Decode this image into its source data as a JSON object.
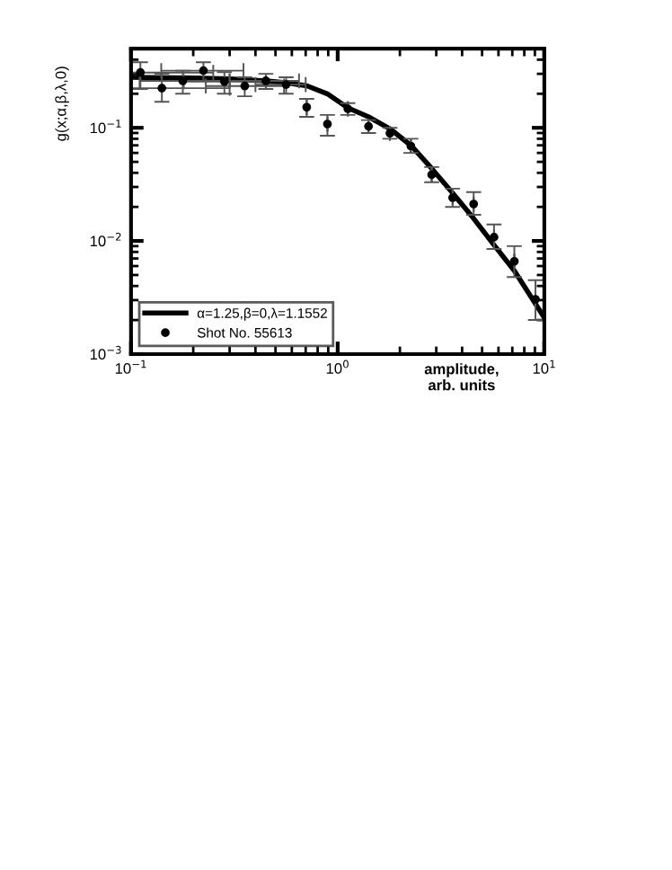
{
  "chart_data": {
    "type": "scatter",
    "xlabel": "amplitude,\narb. units",
    "ylabel": "g(x;α,β,λ,0)",
    "log": "xy",
    "xlim": [
      0.1,
      10
    ],
    "ylim": [
      0.001,
      0.5
    ],
    "xticks": [
      {
        "value": 0.1,
        "label": "10$^{−1}$"
      },
      {
        "value": 1,
        "label": "10$^{0}$"
      },
      {
        "value": 10,
        "label": "10$^{1}$"
      }
    ],
    "yticks": [
      {
        "value": 0.001,
        "label": "10$^{−3}$"
      },
      {
        "value": 0.01,
        "label": "10$^{−2}$"
      },
      {
        "value": 0.1,
        "label": "10$^{−1}$"
      }
    ],
    "grid": false,
    "legend": "bottom left",
    "series": [
      {
        "type": "line",
        "name": "α=1.25,β=0,λ=1.1552",
        "color": "#000000",
        "line_style": "solid",
        "marker": "none",
        "x": [
          0.1,
          0.2,
          0.3,
          0.45,
          0.56,
          0.71,
          0.89,
          1.12,
          1.41,
          1.79,
          2.26,
          2.85,
          3.6,
          4.55,
          5.71,
          7.16,
          10
        ],
        "values": [
          0.28,
          0.275,
          0.27,
          0.26,
          0.25,
          0.235,
          0.2,
          0.15,
          0.125,
          0.098,
          0.07,
          0.0437,
          0.0265,
          0.0158,
          0.0092,
          0.00546,
          0.0021
        ]
      },
      {
        "name": "Shot No. 55613",
        "color": "#000000",
        "marker": "circle",
        "x": [
          0.111,
          0.141,
          0.178,
          0.224,
          0.283,
          0.355,
          0.449,
          0.563,
          0.708,
          0.892,
          1.12,
          1.41,
          1.79,
          2.26,
          2.85,
          3.6,
          4.55,
          5.71,
          7.16,
          9.06
        ],
        "values": [
          0.308,
          0.224,
          0.26,
          0.32,
          0.256,
          0.234,
          0.26,
          0.241,
          0.152,
          0.108,
          0.147,
          0.103,
          0.0895,
          0.069,
          0.0385,
          0.0241,
          0.0212,
          0.0108,
          0.0066,
          0.00305
        ],
        "errors": [
          [
            0.22,
            0.38
          ],
          [
            0.17,
            0.3
          ],
          [
            0.2,
            0.32
          ],
          [
            0.26,
            0.38
          ],
          [
            0.2,
            0.31
          ],
          [
            0.19,
            0.28
          ],
          [
            0.22,
            0.3
          ],
          [
            0.2,
            0.28
          ],
          [
            0.125,
            0.18
          ],
          [
            0.085,
            0.13
          ],
          [
            0.13,
            0.165
          ],
          [
            0.09,
            0.117
          ],
          [
            0.08,
            0.1
          ],
          [
            0.06,
            0.08
          ],
          [
            0.033,
            0.045
          ],
          [
            0.02,
            0.029
          ],
          [
            0.017,
            0.027
          ],
          [
            0.0085,
            0.014
          ],
          [
            0.0048,
            0.009
          ],
          [
            0.002,
            0.0045
          ]
        ],
        "xerrors": [
          [
            0.1,
            0.25
          ],
          [
            0.1,
            0.3
          ],
          [
            0.11,
            0.3
          ],
          [
            0.14,
            0.35
          ],
          [
            0.18,
            0.45
          ],
          [
            0.23,
            0.55
          ],
          [
            0.3,
            0.65
          ],
          [
            0.4,
            0.7
          ],
          null,
          null,
          null,
          null,
          null,
          null,
          null,
          null,
          null,
          null,
          null,
          null
        ]
      }
    ]
  }
}
